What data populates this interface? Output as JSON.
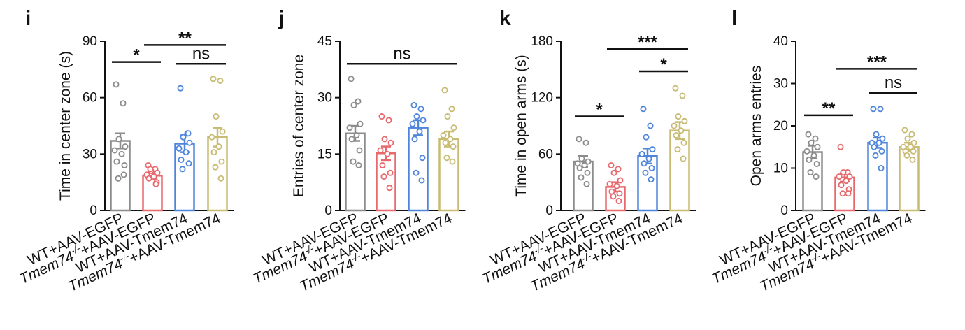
{
  "figure": {
    "colors": {
      "WT+AAV-EGFP": "#8c8c8c",
      "Tmem74-/-+AAV-EGFP": "#e8696d",
      "WT+AAV-Tmem74": "#4f86dc",
      "Tmem74-/-+AAV-Tmem74": "#c8bb73"
    },
    "group_label_parts": [
      {
        "pre": "WT+AAV-EGFP",
        "italic": "",
        "sup": "",
        "post": ""
      },
      {
        "pre": "",
        "italic": "Tmem74",
        "sup": "-/-",
        "post": "+AAV-EGFP"
      },
      {
        "pre": "WT+AAV-Tmem74",
        "italic": "",
        "sup": "",
        "post": ""
      },
      {
        "pre": "",
        "italic": "Tmem74",
        "sup": "-/-",
        "post": "+AAV-Tmem74"
      }
    ]
  },
  "chart_data": [
    {
      "panel": "i",
      "type": "bar",
      "categories": [
        "WT+AAV-EGFP",
        "Tmem74-/-+AAV-EGFP",
        "WT+AAV-Tmem74",
        "Tmem74-/-+AAV-Tmem74"
      ],
      "ylabel": "Time in center zone (s)",
      "ylim": [
        0,
        90
      ],
      "yticks": [
        "0",
        "30",
        "60",
        "90"
      ],
      "values": [
        37,
        18.5,
        35.5,
        39
      ],
      "errors": [
        4,
        1.5,
        4.5,
        5
      ],
      "points": [
        [
          67,
          57,
          38,
          34,
          32,
          30,
          26,
          24,
          17,
          19
        ],
        [
          24,
          22,
          21,
          20,
          19,
          18,
          17,
          15,
          22,
          14
        ],
        [
          65,
          41,
          39,
          36,
          33,
          31,
          27,
          25,
          22,
          41
        ],
        [
          70,
          69,
          50,
          42,
          39,
          34,
          31,
          26,
          23,
          17
        ]
      ],
      "comparisons": [
        {
          "from": 0,
          "to": 1,
          "label": "*",
          "y": 79
        },
        {
          "from": 1,
          "to": 3,
          "label": "**",
          "y": 88
        },
        {
          "from": 2,
          "to": 3,
          "label": "ns",
          "y": 78
        }
      ]
    },
    {
      "panel": "j",
      "type": "bar",
      "categories": [
        "WT+AAV-EGFP",
        "Tmem74-/-+AAV-EGFP",
        "WT+AAV-Tmem74",
        "Tmem74-/-+AAV-Tmem74"
      ],
      "ylabel": "Entries of center zone",
      "ylim": [
        0,
        45
      ],
      "yticks": [
        "0",
        "15",
        "30",
        "45"
      ],
      "values": [
        20.5,
        15.2,
        22,
        19
      ],
      "errors": [
        2,
        1.8,
        2,
        2
      ],
      "points": [
        [
          35,
          29,
          28,
          23,
          22,
          20,
          19,
          16,
          13,
          12
        ],
        [
          25,
          24,
          19,
          18,
          16,
          15,
          12,
          10,
          9,
          6
        ],
        [
          28,
          27,
          25,
          24,
          23,
          21,
          19,
          14,
          10,
          8
        ],
        [
          32,
          27,
          25,
          22,
          20,
          19,
          18,
          17,
          14,
          13
        ]
      ],
      "comparisons": [
        {
          "from": 0,
          "to": 3,
          "label": "ns",
          "y": 39
        }
      ]
    },
    {
      "panel": "k",
      "type": "bar",
      "categories": [
        "WT+AAV-EGFP",
        "Tmem74-/-+AAV-EGFP",
        "WT+AAV-Tmem74",
        "Tmem74-/-+AAV-Tmem74"
      ],
      "ylabel": "Time in open arms (s)",
      "ylim": [
        0,
        180
      ],
      "yticks": [
        "0",
        "60",
        "120",
        "180"
      ],
      "values": [
        52,
        25,
        58,
        85
      ],
      "errors": [
        6,
        5,
        8,
        9
      ],
      "points": [
        [
          76,
          72,
          55,
          52,
          50,
          48,
          45,
          40,
          35,
          28
        ],
        [
          48,
          44,
          40,
          32,
          28,
          26,
          20,
          18,
          15,
          10
        ],
        [
          108,
          90,
          78,
          65,
          60,
          55,
          50,
          45,
          40,
          33
        ],
        [
          130,
          122,
          100,
          95,
          90,
          85,
          80,
          72,
          65,
          55
        ]
      ],
      "comparisons": [
        {
          "from": 0,
          "to": 1,
          "label": "*",
          "y": 100
        },
        {
          "from": 1,
          "to": 3,
          "label": "***",
          "y": 172
        },
        {
          "from": 2,
          "to": 3,
          "label": "*",
          "y": 148
        }
      ]
    },
    {
      "panel": "l",
      "type": "bar",
      "categories": [
        "WT+AAV-EGFP",
        "Tmem74-/-+AAV-EGFP",
        "WT+AAV-Tmem74",
        "Tmem74-/-+AAV-Tmem74"
      ],
      "ylabel": "Open arms entries",
      "ylim": [
        0,
        40
      ],
      "yticks": [
        "0",
        "10",
        "20",
        "30",
        "40"
      ],
      "values": [
        13.8,
        7.8,
        16,
        15
      ],
      "errors": [
        1.5,
        1,
        1.2,
        1
      ],
      "points": [
        [
          18,
          17,
          16,
          15,
          14,
          13,
          12,
          11,
          9,
          8
        ],
        [
          15,
          9,
          9,
          8,
          8,
          7,
          6,
          5,
          4,
          4
        ],
        [
          24,
          24,
          18,
          17,
          16,
          16,
          15,
          14,
          13,
          10
        ],
        [
          19,
          18,
          17,
          16,
          15,
          15,
          14,
          14,
          13,
          12
        ]
      ],
      "comparisons": [
        {
          "from": 0,
          "to": 1,
          "label": "**",
          "y": 22.5
        },
        {
          "from": 1,
          "to": 3,
          "label": "***",
          "y": 33.5
        },
        {
          "from": 2,
          "to": 3,
          "label": "ns",
          "y": 27.8
        }
      ]
    }
  ]
}
